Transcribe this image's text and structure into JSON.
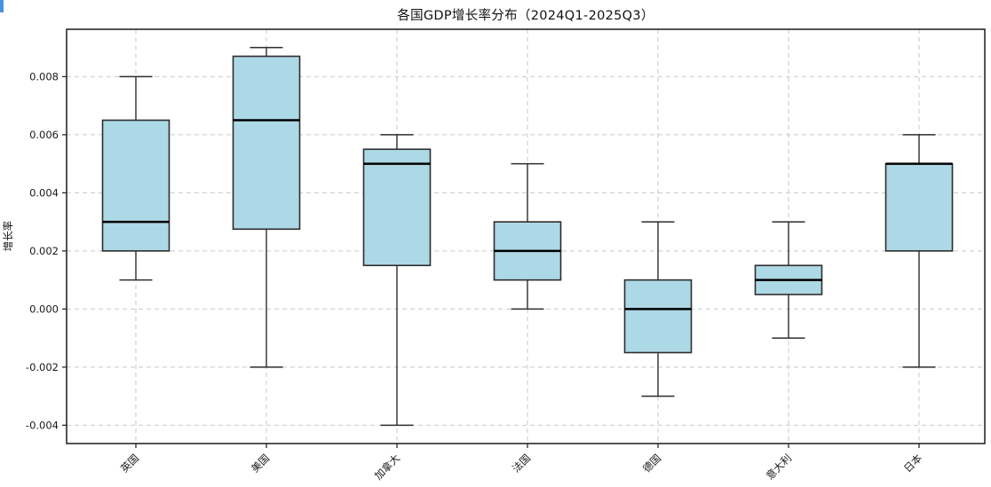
{
  "cursor_artifact_color": "#4a90e2",
  "chart_data": {
    "type": "boxplot",
    "title": "各国GDP增长率分布（2024Q1-2025Q3）",
    "ylabel": "增长率",
    "xlabel": "",
    "categories": [
      "英国",
      "美国",
      "加拿大",
      "法国",
      "德国",
      "意大利",
      "日本"
    ],
    "boxes": [
      {
        "label": "英国",
        "whislo": 0.001,
        "q1": 0.002,
        "med": 0.003,
        "q3": 0.0065,
        "whishi": 0.008
      },
      {
        "label": "美国",
        "whislo": -0.002,
        "q1": 0.00275,
        "med": 0.0065,
        "q3": 0.0087,
        "whishi": 0.009
      },
      {
        "label": "加拿大",
        "whislo": -0.004,
        "q1": 0.0015,
        "med": 0.005,
        "q3": 0.0055,
        "whishi": 0.006
      },
      {
        "label": "法国",
        "whislo": 0.0,
        "q1": 0.001,
        "med": 0.002,
        "q3": 0.003,
        "whishi": 0.005
      },
      {
        "label": "德国",
        "whislo": -0.003,
        "q1": -0.0015,
        "med": 0.0,
        "q3": 0.001,
        "whishi": 0.003
      },
      {
        "label": "意大利",
        "whislo": -0.001,
        "q1": 0.0005,
        "med": 0.001,
        "q3": 0.0015,
        "whishi": 0.003
      },
      {
        "label": "日本",
        "whislo": -0.002,
        "q1": 0.002,
        "med": 0.005,
        "q3": 0.005,
        "whishi": 0.006
      }
    ],
    "yticks": [
      0.008,
      0.006,
      0.004,
      0.002,
      0.0,
      -0.002,
      -0.004
    ],
    "ytick_labels": [
      "0.008",
      "0.006",
      "0.004",
      "0.002",
      "0.000",
      "-0.002",
      "-0.004"
    ],
    "ylim": [
      -0.00463,
      0.00963
    ],
    "grid": "both, dashed",
    "legend": "none",
    "colors": {
      "box_fill": "#ADD8E6",
      "box_edge": "#2d2d2d",
      "median": "#000000",
      "whisker": "#2d2d2d",
      "grid": "#c9c9c9",
      "spine": "#2a2a2a",
      "tick_label": "#1a1a1a",
      "background": "#ffffff"
    }
  }
}
